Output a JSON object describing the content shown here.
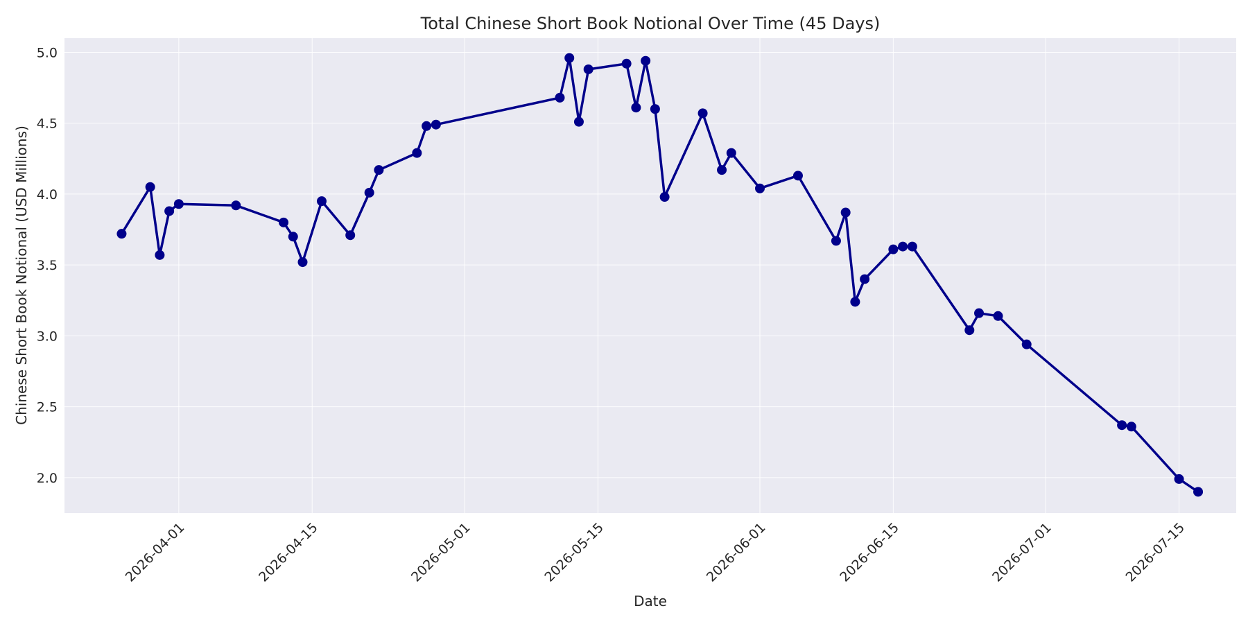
{
  "chart_data": {
    "type": "line",
    "title": "Total Chinese Short Book Notional Over Time (45 Days)",
    "xlabel": "Date",
    "ylabel": "Chinese Short Book Notional (USD Millions)",
    "xlim": [
      "2026-03-20",
      "2026-07-21"
    ],
    "ylim": [
      1.75,
      5.1
    ],
    "x_ticks": [
      "2026-04-01",
      "2026-04-15",
      "2026-05-01",
      "2026-05-15",
      "2026-06-01",
      "2026-06-15",
      "2026-07-01",
      "2026-07-15"
    ],
    "y_ticks": [
      "2.0",
      "2.5",
      "3.0",
      "3.5",
      "4.0",
      "4.5",
      "5.0"
    ],
    "grid": true,
    "colors": {
      "line": "#00008b",
      "plot_bg": "#eaeaf2",
      "grid": "#ffffff",
      "text": "#262626"
    },
    "series": [
      {
        "x": [
          "2026-03-26",
          "2026-03-29",
          "2026-03-30",
          "2026-03-31",
          "2026-04-01",
          "2026-04-07",
          "2026-04-12",
          "2026-04-13",
          "2026-04-14",
          "2026-04-16",
          "2026-04-19",
          "2026-04-21",
          "2026-04-22",
          "2026-04-26",
          "2026-04-27",
          "2026-04-28",
          "2026-05-11",
          "2026-05-12",
          "2026-05-13",
          "2026-05-14",
          "2026-05-18",
          "2026-05-19",
          "2026-05-20",
          "2026-05-21",
          "2026-05-22",
          "2026-05-26",
          "2026-05-28",
          "2026-05-29",
          "2026-06-01",
          "2026-06-05",
          "2026-06-09",
          "2026-06-10",
          "2026-06-11",
          "2026-06-12",
          "2026-06-15",
          "2026-06-16",
          "2026-06-17",
          "2026-06-23",
          "2026-06-24",
          "2026-06-26",
          "2026-06-29",
          "2026-07-09",
          "2026-07-10",
          "2026-07-15",
          "2026-07-17"
        ],
        "values": [
          3.72,
          4.05,
          3.57,
          3.88,
          3.93,
          3.92,
          3.8,
          3.7,
          3.52,
          3.95,
          3.71,
          4.01,
          4.17,
          4.29,
          4.48,
          4.49,
          4.68,
          4.96,
          4.51,
          4.88,
          4.92,
          4.61,
          4.94,
          4.6,
          3.98,
          4.57,
          4.17,
          4.29,
          4.04,
          4.13,
          3.67,
          3.87,
          3.24,
          3.4,
          3.61,
          3.63,
          3.63,
          3.04,
          3.16,
          3.14,
          2.94,
          2.37,
          2.36,
          1.99,
          1.9
        ]
      }
    ]
  }
}
